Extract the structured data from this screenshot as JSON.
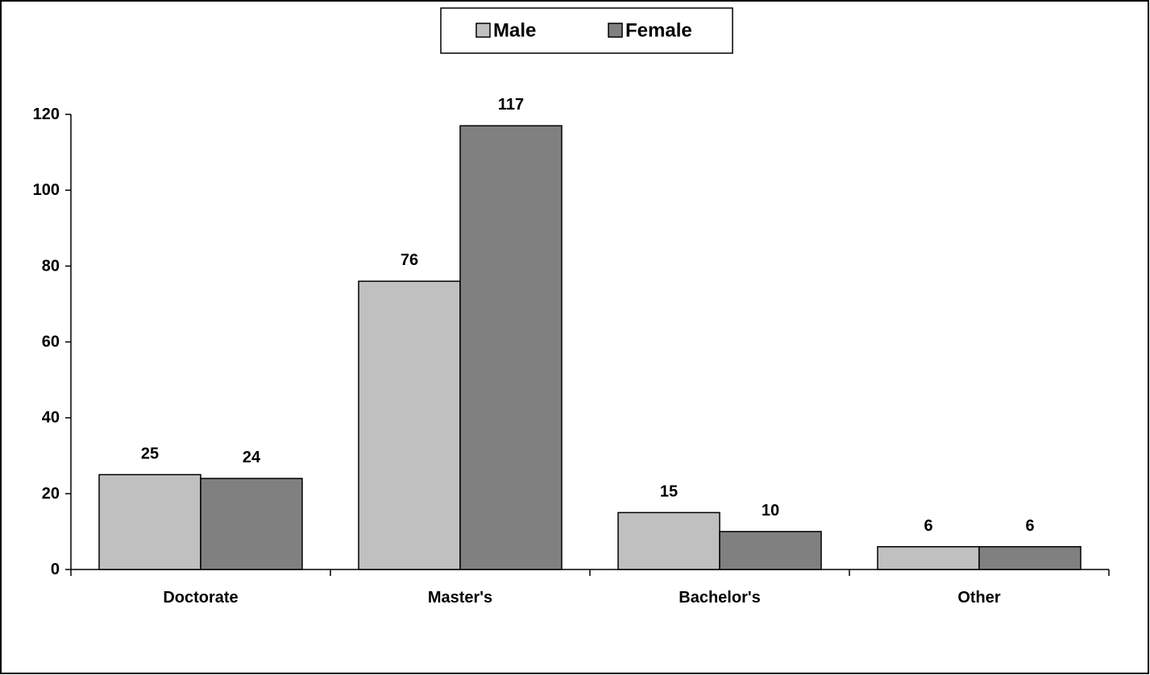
{
  "chart_data": {
    "type": "bar",
    "categories": [
      "Doctorate",
      "Master's",
      "Bachelor's",
      "Other"
    ],
    "series": [
      {
        "name": "Male",
        "values": [
          25,
          76,
          15,
          6
        ],
        "color": "#c0c0c0"
      },
      {
        "name": "Female",
        "values": [
          24,
          117,
          10,
          6
        ],
        "color": "#808080"
      }
    ],
    "ylim": [
      0,
      120
    ],
    "yticks": [
      0,
      20,
      40,
      60,
      80,
      100,
      120
    ],
    "ytick_labels": [
      "0",
      "20",
      "40",
      "60",
      "80",
      "100",
      "120"
    ],
    "grid": false,
    "legend_position": "top-center",
    "title": "",
    "xlabel": "",
    "ylabel": ""
  }
}
